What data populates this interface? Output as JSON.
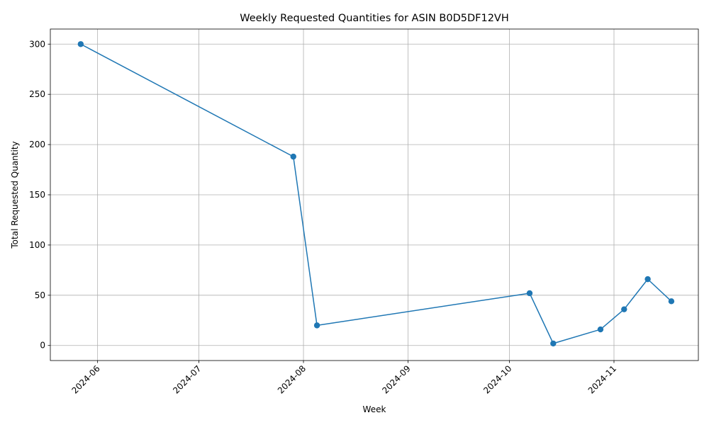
{
  "chart_data": {
    "type": "line",
    "title": "Weekly Requested Quantities for ASIN B0D5DF12VH",
    "xlabel": "Week",
    "ylabel": "Total Requested Quantity",
    "x_ticks": [
      "2024-06",
      "2024-07",
      "2024-08",
      "2024-09",
      "2024-10",
      "2024-11"
    ],
    "x_tick_dates": [
      "2024-06-01",
      "2024-07-01",
      "2024-08-01",
      "2024-09-01",
      "2024-10-01",
      "2024-11-01"
    ],
    "y_ticks": [
      0,
      50,
      100,
      150,
      200,
      250,
      300
    ],
    "xlim": [
      "2024-05-18",
      "2024-11-26"
    ],
    "ylim": [
      -15,
      315
    ],
    "grid": true,
    "series": [
      {
        "color": "#1f77b4",
        "marker": "circle",
        "points": [
          {
            "x": "2024-05-27",
            "y": 300
          },
          {
            "x": "2024-07-29",
            "y": 188
          },
          {
            "x": "2024-08-05",
            "y": 20
          },
          {
            "x": "2024-10-07",
            "y": 52
          },
          {
            "x": "2024-10-14",
            "y": 2
          },
          {
            "x": "2024-10-28",
            "y": 16
          },
          {
            "x": "2024-11-04",
            "y": 36
          },
          {
            "x": "2024-11-11",
            "y": 66
          },
          {
            "x": "2024-11-18",
            "y": 44
          }
        ]
      }
    ]
  }
}
